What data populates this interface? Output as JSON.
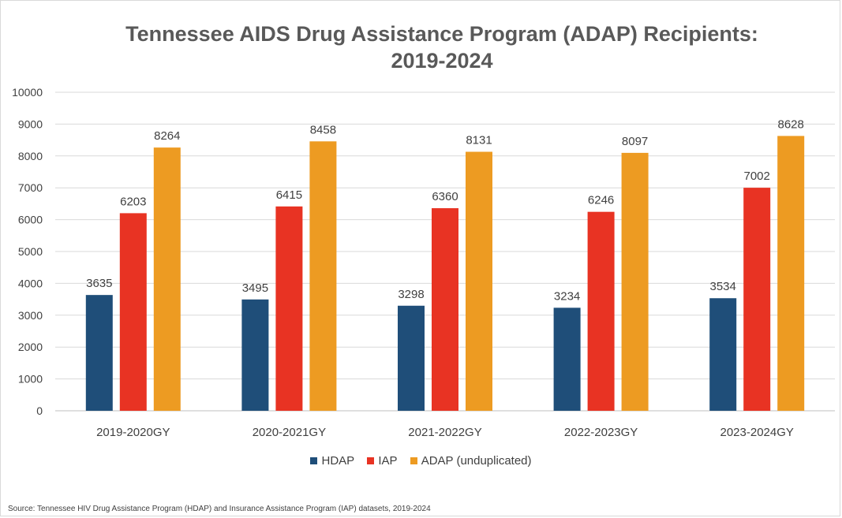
{
  "chart_data": {
    "type": "bar",
    "title_lines": [
      "Tennessee AIDS Drug Assistance Program (ADAP) Recipients:",
      "2019-2024"
    ],
    "categories": [
      "2019-2020GY",
      "2020-2021GY",
      "2021-2022GY",
      "2022-2023GY",
      "2023-2024GY"
    ],
    "series": [
      {
        "name": "HDAP",
        "color": "#1f4e79",
        "values": [
          3635,
          3495,
          3298,
          3234,
          3534
        ]
      },
      {
        "name": "IAP",
        "color": "#e83323",
        "values": [
          6203,
          6415,
          6360,
          6246,
          7002
        ]
      },
      {
        "name": "ADAP (unduplicated)",
        "color": "#ed9b22",
        "values": [
          8264,
          8458,
          8131,
          8097,
          8628
        ]
      }
    ],
    "yticks": [
      0,
      1000,
      2000,
      3000,
      4000,
      5000,
      6000,
      7000,
      8000,
      9000,
      10000
    ],
    "ylim": [
      0,
      10000
    ],
    "grid": true,
    "legend_position": "bottom",
    "source": "Source: Tennessee HIV Drug Assistance Program (HDAP) and Insurance Assistance Program (IAP) datasets, 2019-2024"
  }
}
